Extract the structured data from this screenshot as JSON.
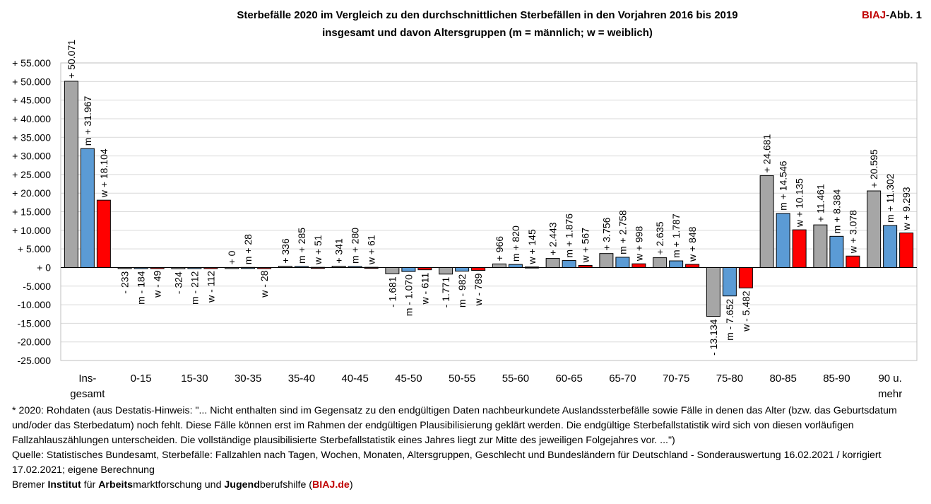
{
  "header": {
    "title_line1": "Sterbefälle 2020 im Vergleich zu den durchschnittlichen Sterbefällen in den Vorjahren 2016 bis 2019",
    "title_line2": "insgesamt und davon Altersgruppen (m = männlich; w = weiblich)",
    "brand_biaj": "BIAJ",
    "brand_suffix": "-Abb. 1"
  },
  "colors": {
    "total": "#a6a6a6",
    "male": "#5b9bd5",
    "female": "#ff0000",
    "gridline": "#d9d9d9",
    "brand": "#c00000"
  },
  "chart_data": {
    "type": "bar",
    "title": "Sterbefälle 2020 im Vergleich zu den durchschnittlichen Sterbefällen in den Vorjahren 2016 bis 2019",
    "ylim": [
      -25000,
      55000
    ],
    "yticks": [
      {
        "value": 55000,
        "label": "+ 55.000"
      },
      {
        "value": 50000,
        "label": "+ 50.000"
      },
      {
        "value": 45000,
        "label": "+ 45.000"
      },
      {
        "value": 40000,
        "label": "+ 40.000"
      },
      {
        "value": 35000,
        "label": "+ 35.000"
      },
      {
        "value": 30000,
        "label": "+ 30.000"
      },
      {
        "value": 25000,
        "label": "+ 25.000"
      },
      {
        "value": 20000,
        "label": "+ 20.000"
      },
      {
        "value": 15000,
        "label": "+ 15.000"
      },
      {
        "value": 10000,
        "label": "+ 10.000"
      },
      {
        "value": 5000,
        "label": "+ 5.000"
      },
      {
        "value": 0,
        "label": "+ 0"
      },
      {
        "value": -5000,
        "label": "-5.000"
      },
      {
        "value": -10000,
        "label": "-10.000"
      },
      {
        "value": -15000,
        "label": "-15.000"
      },
      {
        "value": -20000,
        "label": "-20.000"
      },
      {
        "value": -25000,
        "label": "-25.000"
      }
    ],
    "categories": [
      [
        "Ins-",
        "gesamt"
      ],
      [
        "0-15"
      ],
      [
        "15-30"
      ],
      [
        "30-35"
      ],
      [
        "35-40"
      ],
      [
        "40-45"
      ],
      [
        "45-50"
      ],
      [
        "50-55"
      ],
      [
        "55-60"
      ],
      [
        "60-65"
      ],
      [
        "65-70"
      ],
      [
        "70-75"
      ],
      [
        "75-80"
      ],
      [
        "80-85"
      ],
      [
        "85-90"
      ],
      [
        "90 u.",
        "mehr"
      ]
    ],
    "series": [
      {
        "name": "insgesamt",
        "color_key": "total",
        "values": [
          50071,
          -233,
          -324,
          0,
          336,
          341,
          -1681,
          -1771,
          966,
          2443,
          3756,
          2635,
          -13134,
          24681,
          11461,
          20595
        ],
        "labels": [
          "+ 50.071",
          "- 233",
          "- 324",
          "+ 0",
          "+ 336",
          "+ 341",
          "- 1.681",
          "- 1.771",
          "+ 966",
          "+ 2.443",
          "+ 3.756",
          "+ 2.635",
          "- 13.134",
          "+ 24.681",
          "+ 11.461",
          "+ 20.595"
        ]
      },
      {
        "name": "männlich",
        "color_key": "male",
        "values": [
          31967,
          -184,
          -212,
          28,
          285,
          280,
          -1070,
          -982,
          820,
          1876,
          2758,
          1787,
          -7652,
          14546,
          8384,
          11302
        ],
        "labels": [
          "m + 31.967",
          "m - 184",
          "m - 212",
          "m + 28",
          "m + 285",
          "m + 280",
          "m - 1.070",
          "m - 982",
          "m + 820",
          "m + 1.876",
          "m + 2.758",
          "m + 1.787",
          "m - 7.652",
          "m + 14.546",
          "m + 8.384",
          "m + 11.302"
        ]
      },
      {
        "name": "weiblich",
        "color_key": "female",
        "values": [
          18104,
          -49,
          -112,
          -28,
          51,
          61,
          -611,
          -789,
          145,
          567,
          998,
          848,
          -5482,
          10135,
          3078,
          9293
        ],
        "labels": [
          "w + 18.104",
          "w - 49",
          "w - 112",
          "w - 28",
          "w + 51",
          "w + 61",
          "w - 611",
          "w - 789",
          "w + 145",
          "w + 567",
          "w + 998",
          "w + 848",
          "w - 5.482",
          "w + 10.135",
          "w + 3.078",
          "w + 9.293"
        ]
      }
    ]
  },
  "footnotes": {
    "note1": "* 2020: Rohdaten (aus Destatis-Hinweis: \"... Nicht enthalten sind im Gegensatz zu den endgültigen Daten nachbeurkundete Auslandssterbefälle sowie Fälle in denen das Alter (bzw. das Geburtsdatum und/oder das Sterbedatum) noch fehlt. Diese Fälle können erst im Rahmen der endgültigen Plausibilisierung geklärt werden. Die endgültige Sterbefallstatistik wird sich von diesen vorläufigen Fallzahlauszählungen unterscheiden. Die vollständige plausibilisierte Sterbefallstatistik eines Jahres liegt zur Mitte des jeweiligen Folgejahres vor. ...\")",
    "source": "Quelle: Statistisches Bundesamt, Sterbefälle: Fallzahlen nach Tagen, Wochen, Monaten, Altersgruppen, Geschlecht und Bundesländern für Deutschland - Sonderauswertung 16.02.2021 / korrigiert 17.02.2021; eigene Berechnung",
    "org_pre1": "Bremer ",
    "org_b1": "Institut",
    "org_pre2": " für ",
    "org_b2": "Arbeits",
    "org_pre3": "marktforschung und ",
    "org_b3": "Jugend",
    "org_pre4": "berufshilfe (",
    "org_site": "BIAJ.de",
    "org_post": ")"
  }
}
